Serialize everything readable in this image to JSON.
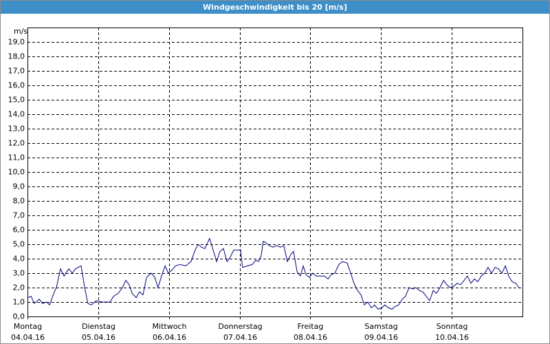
{
  "chart_data": {
    "type": "line",
    "title": "Windgeschwindigkeit bis 20 [m/s]",
    "ylabel": "m/s",
    "xlim": [
      0,
      168
    ],
    "xticks": [
      {
        "value": 0,
        "label": "Montag",
        "date": "04.04.16"
      },
      {
        "value": 24,
        "label": "Dienstag",
        "date": "05.04.16"
      },
      {
        "value": 48,
        "label": "Mittwoch",
        "date": "06.04.16"
      },
      {
        "value": 72,
        "label": "Donnerstag",
        "date": "07.04.16"
      },
      {
        "value": 96,
        "label": "Freitag",
        "date": "08.04.16"
      },
      {
        "value": 120,
        "label": "Samstag",
        "date": "09.04.16"
      },
      {
        "value": 144,
        "label": "Sonntag",
        "date": "10.04.16"
      }
    ],
    "ylim": [
      0,
      20
    ],
    "yticks": [
      {
        "value": 0,
        "label": "0,0"
      },
      {
        "value": 1,
        "label": "1,0"
      },
      {
        "value": 2,
        "label": "2,0"
      },
      {
        "value": 3,
        "label": "3,0"
      },
      {
        "value": 4,
        "label": "4,0"
      },
      {
        "value": 5,
        "label": "5,0"
      },
      {
        "value": 6,
        "label": "6,0"
      },
      {
        "value": 7,
        "label": "7,0"
      },
      {
        "value": 8,
        "label": "8,0"
      },
      {
        "value": 9,
        "label": "9,0"
      },
      {
        "value": 10,
        "label": "10,0"
      },
      {
        "value": 11,
        "label": "11,0"
      },
      {
        "value": 12,
        "label": "12,0"
      },
      {
        "value": 13,
        "label": "13,0"
      },
      {
        "value": 14,
        "label": "14,0"
      },
      {
        "value": 15,
        "label": "15,0"
      },
      {
        "value": 16,
        "label": "16,0"
      },
      {
        "value": 17,
        "label": "17,0"
      },
      {
        "value": 18,
        "label": "18,0"
      },
      {
        "value": 19,
        "label": "19,0"
      }
    ],
    "grid": true,
    "series": [
      {
        "color": "#000080",
        "x": [
          0,
          1.2,
          2.3,
          4.0,
          5.1,
          6.5,
          7.5,
          8.9,
          9.8,
          11.2,
          12.4,
          14.0,
          15.2,
          16.3,
          18.2,
          19.4,
          20.5,
          21.7,
          23.3,
          25.2,
          28.0,
          29.2,
          30.8,
          32.2,
          33.4,
          34.5,
          35.5,
          36.9,
          38.0,
          39.2,
          40.4,
          42.0,
          43.2,
          44.3,
          45.5,
          46.7,
          47.8,
          49.0,
          50.2,
          51.8,
          53.7,
          55.5,
          56.7,
          57.9,
          59.0,
          60.2,
          61.8,
          63.0,
          64.2,
          65.3,
          66.5,
          67.7,
          68.8,
          70.0,
          72.3,
          73.0,
          74.7,
          76.3,
          77.5,
          78.4,
          79.3,
          80.0,
          81.0,
          82.1,
          83.3,
          84.5,
          85.9,
          87.0,
          88.2,
          89.4,
          90.3,
          91.5,
          92.6,
          93.6,
          94.5,
          95.7,
          96.8,
          98.0,
          99.6,
          100.8,
          102.0,
          103.1,
          104.3,
          105.7,
          106.9,
          108.5,
          109.7,
          110.8,
          112.0,
          113.2,
          114.3,
          115.5,
          116.7,
          117.8,
          119.0,
          120.2,
          121.3,
          122.5,
          123.7,
          124.8,
          126.0,
          127.2,
          128.3,
          129.5,
          130.7,
          131.8,
          133.0,
          134.2,
          135.3,
          136.5,
          137.7,
          138.8,
          140.0,
          141.2,
          142.3,
          143.5,
          144.7,
          145.8,
          147.0,
          148.2,
          149.3,
          150.5,
          151.7,
          152.8,
          154.0,
          155.2,
          156.3,
          157.5,
          158.7,
          159.8,
          161.0,
          162.2,
          163.3,
          164.5,
          165.7,
          166.8
        ],
        "values": [
          1.3,
          1.4,
          0.9,
          1.2,
          0.9,
          1.0,
          0.8,
          1.6,
          2.0,
          3.3,
          2.8,
          3.3,
          3.0,
          3.3,
          3.5,
          2.0,
          0.9,
          0.8,
          1.1,
          1.0,
          1.0,
          1.4,
          1.6,
          2.0,
          2.5,
          2.2,
          1.6,
          1.3,
          1.7,
          1.5,
          2.7,
          3.0,
          2.7,
          2.0,
          2.8,
          3.5,
          3.0,
          3.2,
          3.5,
          3.6,
          3.5,
          3.8,
          4.5,
          5.0,
          4.8,
          4.7,
          5.4,
          4.6,
          3.8,
          4.5,
          4.7,
          3.8,
          4.1,
          4.6,
          4.6,
          3.4,
          3.5,
          3.6,
          3.9,
          3.8,
          4.2,
          5.2,
          5.1,
          4.9,
          4.8,
          4.9,
          4.8,
          4.9,
          3.8,
          4.3,
          4.5,
          3.1,
          2.8,
          3.5,
          2.9,
          2.7,
          3.0,
          2.8,
          2.8,
          2.8,
          2.6,
          2.9,
          3.0,
          3.6,
          3.8,
          3.7,
          3.0,
          2.3,
          1.8,
          1.5,
          0.8,
          1.0,
          0.6,
          0.8,
          0.5,
          0.6,
          0.8,
          0.6,
          0.5,
          0.7,
          0.8,
          1.2,
          1.4,
          2.0,
          1.9,
          2.0,
          1.8,
          1.7,
          1.4,
          1.1,
          1.8,
          1.6,
          2.0,
          2.5,
          2.2,
          2.0,
          2.1,
          2.3,
          2.2,
          2.5,
          2.8,
          2.3,
          2.6,
          2.4,
          2.8,
          3.0,
          3.4,
          3.0,
          3.4,
          3.3,
          3.0,
          3.5,
          2.8,
          2.4,
          2.3,
          2.0
        ]
      }
    ]
  }
}
